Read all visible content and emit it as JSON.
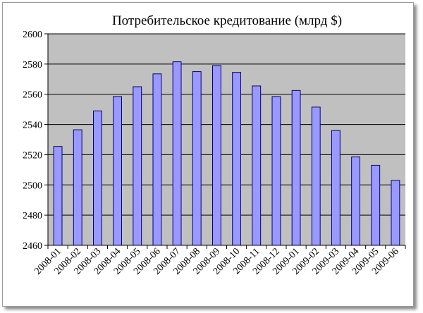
{
  "chart_data": {
    "type": "bar",
    "title": "Потребительское кредитование (млрд $)",
    "xlabel": "",
    "ylabel": "",
    "categories": [
      "2008-01",
      "2008-02",
      "2008-03",
      "2008-04",
      "2008-05",
      "2008-06",
      "2008-07",
      "2008-08",
      "2008-09",
      "2008-10",
      "2008-11",
      "2008-12",
      "2009-01",
      "2009-02",
      "2009-03",
      "2009-04",
      "2009-05",
      "2009-06"
    ],
    "values": [
      2525.5,
      2536.5,
      2549,
      2558.5,
      2565,
      2573.5,
      2581.5,
      2575,
      2579,
      2574.5,
      2565.5,
      2558.5,
      2562.5,
      2551.5,
      2536,
      2518.5,
      2513,
      2503
    ],
    "ylim": [
      2460,
      2600
    ],
    "yticks": [
      "2460",
      "2480",
      "2500",
      "2520",
      "2540",
      "2560",
      "2580",
      "2600"
    ],
    "grid": true,
    "legend": "none",
    "colors": {
      "plot_bg": "#c0c0c0",
      "bar_fill": "#9999ff",
      "bar_stroke": "#000080",
      "grid": "#000000"
    }
  }
}
